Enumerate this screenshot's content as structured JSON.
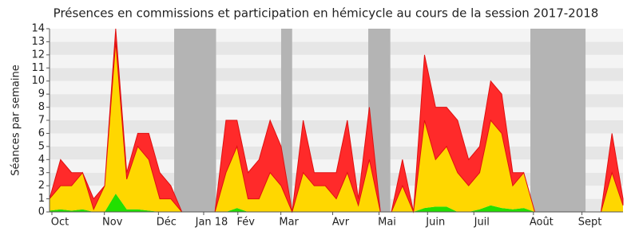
{
  "chart_data": {
    "type": "stacked-area",
    "title": "Présences en commissions et participation en hémicycle au cours de la session 2017-2018",
    "y_label": "Séances par semaine",
    "x": [
      0,
      1,
      2,
      3,
      4,
      5,
      6,
      7,
      8,
      9,
      10,
      11,
      12,
      13,
      14,
      15,
      16,
      17,
      18,
      19,
      20,
      21,
      22,
      23,
      24,
      25,
      26,
      27,
      28,
      29,
      30,
      31,
      32,
      33,
      34,
      35,
      36,
      37,
      38,
      39,
      40,
      41,
      42,
      43,
      44,
      45,
      46,
      47,
      48,
      49,
      50,
      51,
      52
    ],
    "xlim": [
      0,
      52
    ],
    "xticks": [
      {
        "value": 0.94,
        "label": "Oct"
      },
      {
        "value": 5.7,
        "label": "Nov"
      },
      {
        "value": 10.6,
        "label": "Déc"
      },
      {
        "value": 14.7,
        "label": "Jan 18"
      },
      {
        "value": 17.8,
        "label": "Fév"
      },
      {
        "value": 21.7,
        "label": "Mar"
      },
      {
        "value": 26.4,
        "label": "Avr"
      },
      {
        "value": 30.6,
        "label": "Mai"
      },
      {
        "value": 35,
        "label": "Juin"
      },
      {
        "value": 39.2,
        "label": "Juil"
      },
      {
        "value": 44.6,
        "label": "Août"
      },
      {
        "value": 49,
        "label": "Sept"
      }
    ],
    "ylim": [
      0,
      14
    ],
    "yticks": [
      0,
      1,
      2,
      3,
      4,
      5,
      6,
      7,
      8,
      9,
      10,
      11,
      12,
      13,
      14
    ],
    "grid": true,
    "shaded_ranges": [
      [
        11.3,
        15.1
      ],
      [
        21,
        22
      ],
      [
        28.9,
        30.9
      ],
      [
        43.6,
        48.6
      ]
    ],
    "series": [
      {
        "color": "#22e000",
        "values": [
          0.1,
          0.2,
          0.1,
          0.2,
          0,
          0,
          1.4,
          0.2,
          0.2,
          0.1,
          0,
          0,
          0,
          0,
          0,
          0,
          0,
          0.3,
          0,
          0,
          0,
          0,
          0,
          0,
          0,
          0,
          0,
          0,
          0,
          0,
          0,
          0,
          0,
          0,
          0.3,
          0.4,
          0.4,
          0,
          0,
          0.2,
          0.5,
          0.3,
          0.2,
          0.3,
          0,
          0,
          0,
          0,
          0,
          0,
          0,
          0,
          0
        ]
      },
      {
        "color": "#ffd700",
        "values": [
          0.9,
          1.8,
          1.9,
          2.8,
          0.2,
          2,
          11.6,
          2.3,
          4.8,
          3.9,
          1,
          1,
          0,
          0,
          0,
          0,
          3,
          4.7,
          1,
          1,
          3,
          2,
          0,
          3,
          2,
          2,
          1,
          3,
          0.5,
          4,
          0,
          0,
          2,
          0,
          6.7,
          3.6,
          4.6,
          3,
          2,
          2.8,
          6.5,
          5.7,
          1.8,
          2.7,
          0,
          0,
          0,
          0,
          0,
          0,
          0,
          3,
          0.5
        ]
      },
      {
        "color": "#ff2a2a",
        "values": [
          0,
          2,
          1,
          0,
          0.8,
          0,
          1,
          0.5,
          1,
          2,
          2,
          1,
          0,
          0,
          0,
          0,
          4,
          2,
          2,
          3,
          4,
          3,
          0,
          4,
          1,
          1,
          2,
          4,
          0.5,
          4,
          0,
          0,
          2,
          0,
          5,
          4,
          3,
          4,
          2,
          2,
          3,
          3,
          1,
          0,
          0,
          0,
          0,
          0,
          0,
          0,
          0,
          3,
          0.5
        ]
      }
    ]
  }
}
